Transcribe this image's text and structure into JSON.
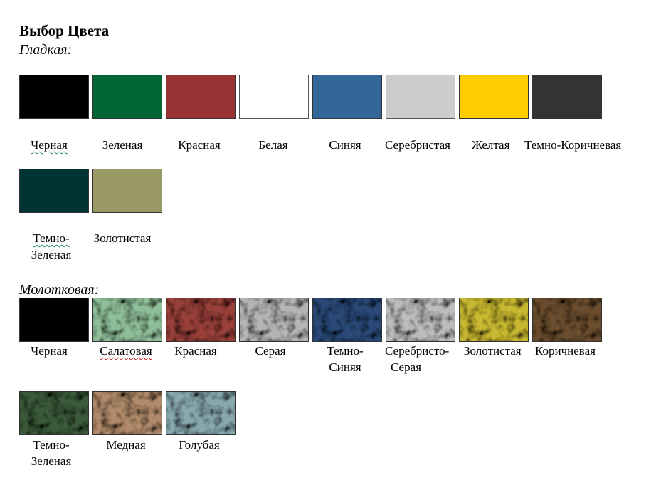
{
  "title": "Выбор Цвета",
  "smooth": {
    "heading": "Гладкая:",
    "colors": [
      {
        "label": "Черная",
        "color": "#000000"
      },
      {
        "label": "Зеленая",
        "color": "#006633"
      },
      {
        "label": "Красная",
        "color": "#993333"
      },
      {
        "label": "Белая",
        "color": "#ffffff"
      },
      {
        "label": "Синяя",
        "color": "#336699"
      },
      {
        "label": "Серебристая",
        "color": "#cccccc"
      },
      {
        "label": "Желтая",
        "color": "#ffcc00"
      },
      {
        "label": "Темно-Коричневая",
        "color": "#333333"
      },
      {
        "label_line1": "Темно-",
        "label_line2": "Зеленая",
        "color": "#003333"
      },
      {
        "label": "Золотистая",
        "color": "#999966"
      }
    ]
  },
  "hammer": {
    "heading": "Молотковая:",
    "colors": [
      {
        "label": "Черная",
        "color": "#000000"
      },
      {
        "label": "Салатовая",
        "color": "#8fbf99"
      },
      {
        "label": "Красная",
        "color": "#99403a"
      },
      {
        "label": "Серая",
        "color": "#b5b5b5"
      },
      {
        "label_line1": "Темно-",
        "label_line2": "Синяя",
        "color": "#2a4a78"
      },
      {
        "label_line1": "Серебристо-",
        "label_line2": "Серая",
        "color": "#bcbcbc"
      },
      {
        "label": "Золотистая",
        "color": "#c8b830"
      },
      {
        "label": "Коричневая",
        "color": "#6b4e2e"
      },
      {
        "label_line1": "Темно-",
        "label_line2": "Зеленая",
        "color": "#3a5a3a"
      },
      {
        "label": "Медная",
        "color": "#b08a6a"
      },
      {
        "label": "Голубая",
        "color": "#88a8b0"
      }
    ]
  }
}
